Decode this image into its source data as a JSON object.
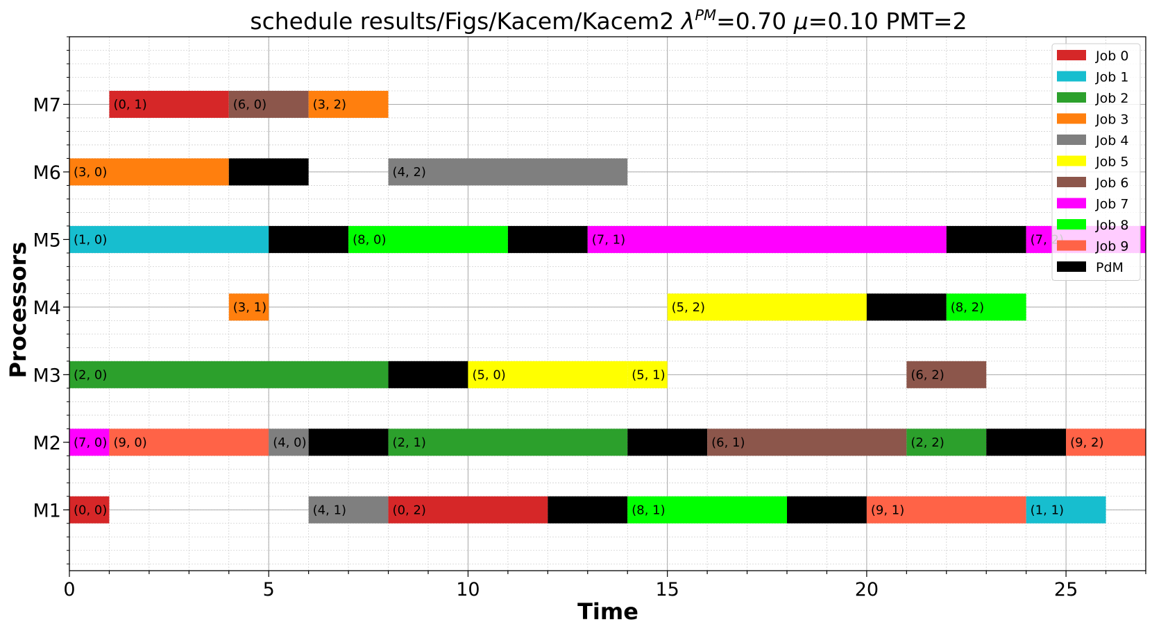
{
  "chart_data": {
    "type": "gantt",
    "title_parts": {
      "prefix": "schedule results/Figs/Kacem/Kacem2 ",
      "lambda": "λ",
      "lambda_sup": "PM",
      "lambda_val": "=0.70 ",
      "mu": "μ",
      "mu_val": "=0.10 PMT=2"
    },
    "xlabel": "Time",
    "ylabel": "Processors",
    "xlim": [
      0,
      27
    ],
    "x_ticks": [
      0,
      5,
      10,
      15,
      20,
      25
    ],
    "y_ticks": [
      {
        "label": "M1",
        "value": 1
      },
      {
        "label": "M2",
        "value": 2
      },
      {
        "label": "M3",
        "value": 3
      },
      {
        "label": "M4",
        "value": 4
      },
      {
        "label": "M5",
        "value": 5
      },
      {
        "label": "M6",
        "value": 6
      },
      {
        "label": "M7",
        "value": 7
      }
    ],
    "ylim": [
      0.1,
      8.0
    ],
    "grid": true,
    "legend_position": "top-right",
    "legend": [
      {
        "name": "Job 0",
        "color": "#d62728"
      },
      {
        "name": "Job 1",
        "color": "#17becf"
      },
      {
        "name": "Job 2",
        "color": "#2ca02c"
      },
      {
        "name": "Job 3",
        "color": "#ff7f0e"
      },
      {
        "name": "Job 4",
        "color": "#7f7f7f"
      },
      {
        "name": "Job 5",
        "color": "#ffff00"
      },
      {
        "name": "Job 6",
        "color": "#8c564b"
      },
      {
        "name": "Job 7",
        "color": "#ff00ff"
      },
      {
        "name": "Job 8",
        "color": "#00ff00"
      },
      {
        "name": "Job 9",
        "color": "#ff6347"
      },
      {
        "name": "PdM",
        "color": "#000000"
      }
    ],
    "tasks": [
      {
        "machine": "M7",
        "start": 1,
        "end": 4,
        "job": 0,
        "label": "(0, 1)"
      },
      {
        "machine": "M7",
        "start": 4,
        "end": 6,
        "job": 6,
        "label": "(6, 0)"
      },
      {
        "machine": "M7",
        "start": 6,
        "end": 8,
        "job": 3,
        "label": "(3, 2)"
      },
      {
        "machine": "M6",
        "start": 0,
        "end": 4,
        "job": 3,
        "label": "(3, 0)"
      },
      {
        "machine": "M6",
        "start": 4,
        "end": 6,
        "job": "pdm",
        "label": ""
      },
      {
        "machine": "M6",
        "start": 8,
        "end": 14,
        "job": 4,
        "label": "(4, 2)"
      },
      {
        "machine": "M5",
        "start": 0,
        "end": 5,
        "job": 1,
        "label": "(1, 0)"
      },
      {
        "machine": "M5",
        "start": 5,
        "end": 7,
        "job": "pdm",
        "label": ""
      },
      {
        "machine": "M5",
        "start": 7,
        "end": 11,
        "job": 8,
        "label": "(8, 0)"
      },
      {
        "machine": "M5",
        "start": 11,
        "end": 13,
        "job": "pdm",
        "label": ""
      },
      {
        "machine": "M5",
        "start": 13,
        "end": 22,
        "job": 7,
        "label": "(7, 1)"
      },
      {
        "machine": "M5",
        "start": 22,
        "end": 24,
        "job": "pdm",
        "label": ""
      },
      {
        "machine": "M5",
        "start": 24,
        "end": 27,
        "job": 7,
        "label": "(7, 2)"
      },
      {
        "machine": "M4",
        "start": 4,
        "end": 5,
        "job": 3,
        "label": "(3, 1)"
      },
      {
        "machine": "M4",
        "start": 15,
        "end": 20,
        "job": 5,
        "label": "(5, 2)"
      },
      {
        "machine": "M4",
        "start": 20,
        "end": 22,
        "job": "pdm",
        "label": ""
      },
      {
        "machine": "M4",
        "start": 22,
        "end": 24,
        "job": 8,
        "label": "(8, 2)"
      },
      {
        "machine": "M3",
        "start": 0,
        "end": 8,
        "job": 2,
        "label": "(2, 0)"
      },
      {
        "machine": "M3",
        "start": 8,
        "end": 10,
        "job": "pdm",
        "label": ""
      },
      {
        "machine": "M3",
        "start": 10,
        "end": 14,
        "job": 5,
        "label": "(5, 0)"
      },
      {
        "machine": "M3",
        "start": 14,
        "end": 15,
        "job": 5,
        "label": "(5, 1)"
      },
      {
        "machine": "M3",
        "start": 21,
        "end": 23,
        "job": 6,
        "label": "(6, 2)"
      },
      {
        "machine": "M2",
        "start": 0,
        "end": 1,
        "job": 7,
        "label": "(7, 0)"
      },
      {
        "machine": "M2",
        "start": 1,
        "end": 5,
        "job": 9,
        "label": "(9, 0)"
      },
      {
        "machine": "M2",
        "start": 5,
        "end": 6,
        "job": 4,
        "label": "(4, 0)"
      },
      {
        "machine": "M2",
        "start": 6,
        "end": 8,
        "job": "pdm",
        "label": ""
      },
      {
        "machine": "M2",
        "start": 8,
        "end": 14,
        "job": 2,
        "label": "(2, 1)"
      },
      {
        "machine": "M2",
        "start": 14,
        "end": 16,
        "job": "pdm",
        "label": ""
      },
      {
        "machine": "M2",
        "start": 16,
        "end": 21,
        "job": 6,
        "label": "(6, 1)"
      },
      {
        "machine": "M2",
        "start": 21,
        "end": 23,
        "job": 2,
        "label": "(2, 2)"
      },
      {
        "machine": "M2",
        "start": 23,
        "end": 25,
        "job": "pdm",
        "label": ""
      },
      {
        "machine": "M2",
        "start": 25,
        "end": 27,
        "job": 9,
        "label": "(9, 2)"
      },
      {
        "machine": "M1",
        "start": 0,
        "end": 1,
        "job": 0,
        "label": "(0, 0)"
      },
      {
        "machine": "M1",
        "start": 6,
        "end": 8,
        "job": 4,
        "label": "(4, 1)"
      },
      {
        "machine": "M1",
        "start": 8,
        "end": 12,
        "job": 0,
        "label": "(0, 2)"
      },
      {
        "machine": "M1",
        "start": 12,
        "end": 14,
        "job": "pdm",
        "label": ""
      },
      {
        "machine": "M1",
        "start": 14,
        "end": 18,
        "job": 8,
        "label": "(8, 1)"
      },
      {
        "machine": "M1",
        "start": 18,
        "end": 20,
        "job": "pdm",
        "label": ""
      },
      {
        "machine": "M1",
        "start": 20,
        "end": 24,
        "job": 9,
        "label": "(9, 1)"
      },
      {
        "machine": "M1",
        "start": 24,
        "end": 26,
        "job": 1,
        "label": "(1, 1)"
      }
    ]
  }
}
